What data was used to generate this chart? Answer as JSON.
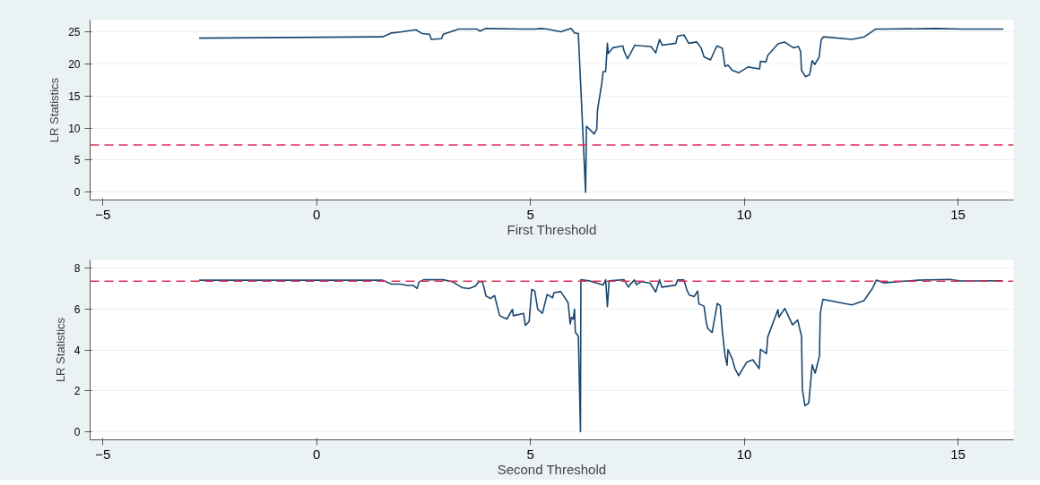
{
  "chart_data": [
    {
      "type": "line",
      "xlabel": "First Threshold",
      "ylabel": "LR Statistics",
      "xlim": [
        -5.3,
        16.3
      ],
      "ylim": [
        -1.2,
        26.8
      ],
      "xticks": [
        -5,
        0,
        5,
        10,
        15
      ],
      "yticks": [
        0,
        5,
        10,
        15,
        20,
        25
      ],
      "grid": "y",
      "series": [
        {
          "color": "#1a476f",
          "x": [
            -2.75,
            1.54,
            1.75,
            2.0,
            2.32,
            2.47,
            2.64,
            2.68,
            2.92,
            2.96,
            3.32,
            3.75,
            3.82,
            3.96,
            4.82,
            5.1,
            5.24,
            5.39,
            5.71,
            5.95,
            6.03,
            6.12,
            6.29,
            6.31,
            6.49,
            6.55,
            6.57,
            6.67,
            6.7,
            6.76,
            6.8,
            6.82,
            6.93,
            7.16,
            7.19,
            7.27,
            7.33,
            7.44,
            7.59,
            7.82,
            7.93,
            8.02,
            8.08,
            8.4,
            8.44,
            8.59,
            8.7,
            8.89,
            8.99,
            9.06,
            9.21,
            9.36,
            9.49,
            9.55,
            9.62,
            9.72,
            9.87,
            10.09,
            10.36,
            10.38,
            10.51,
            10.55,
            10.79,
            10.94,
            11.15,
            11.27,
            11.32,
            11.34,
            11.43,
            11.53,
            11.59,
            11.65,
            11.75,
            11.8,
            11.85,
            12.52,
            12.81,
            13.01,
            13.07,
            13.26,
            14.5,
            15.09,
            16.06
          ],
          "values": [
            24.0,
            24.2,
            24.8,
            25.0,
            25.3,
            24.7,
            24.6,
            23.8,
            23.9,
            24.6,
            25.4,
            25.4,
            25.1,
            25.5,
            25.4,
            25.4,
            25.5,
            25.4,
            25.0,
            25.5,
            24.8,
            24.7,
            0,
            10.3,
            9.1,
            9.8,
            12.9,
            17.0,
            18.8,
            18.8,
            23.2,
            21.6,
            22.5,
            22.8,
            22.0,
            20.8,
            21.5,
            22.9,
            22.8,
            22.7,
            21.7,
            23.8,
            22.9,
            23.2,
            24.3,
            24.5,
            23.2,
            23.4,
            22.5,
            21.1,
            20.6,
            22.8,
            22.4,
            19.6,
            19.8,
            19.0,
            18.6,
            19.5,
            19.2,
            20.4,
            20.3,
            21.3,
            23.1,
            23.4,
            22.5,
            22.7,
            21.9,
            19.0,
            18.0,
            18.3,
            20.5,
            19.9,
            21.0,
            23.7,
            24.2,
            23.8,
            24.2,
            25.1,
            25.4,
            25.4,
            25.5,
            25.4,
            25.4
          ]
        }
      ],
      "ref_lines": [
        {
          "axis": "y",
          "value": 7.36,
          "color": "#e0315a",
          "line_style": "dashed"
        }
      ]
    },
    {
      "type": "line",
      "xlabel": "Second Threshold",
      "ylabel": "LR Statistics",
      "xlim": [
        -5.3,
        16.3
      ],
      "ylim": [
        -0.4,
        8.4
      ],
      "xticks": [
        -5,
        0,
        5,
        10,
        15
      ],
      "yticks": [
        0,
        2,
        4,
        6,
        8
      ],
      "grid": "y",
      "series": [
        {
          "color": "#1a476f",
          "x": [
            -2.75,
            1.54,
            1.75,
            1.96,
            2.11,
            2.26,
            2.35,
            2.39,
            2.5,
            2.96,
            3.18,
            3.41,
            3.56,
            3.71,
            3.8,
            3.88,
            3.96,
            4.07,
            4.16,
            4.28,
            4.45,
            4.58,
            4.6,
            4.84,
            4.88,
            4.97,
            5.03,
            5.1,
            5.17,
            5.28,
            5.39,
            5.52,
            5.55,
            5.71,
            5.88,
            5.93,
            5.96,
            6.0,
            6.03,
            6.05,
            6.12,
            6.17,
            6.18,
            6.37,
            6.7,
            6.76,
            6.8,
            6.84,
            7.19,
            7.29,
            7.33,
            7.43,
            7.48,
            7.59,
            7.8,
            7.93,
            8.02,
            8.07,
            8.4,
            8.44,
            8.59,
            8.66,
            8.72,
            8.83,
            8.91,
            8.94,
            9.06,
            9.11,
            9.15,
            9.25,
            9.37,
            9.44,
            9.49,
            9.55,
            9.6,
            9.62,
            9.73,
            9.78,
            9.87,
            10.06,
            10.2,
            10.35,
            10.38,
            10.52,
            10.55,
            10.79,
            10.81,
            10.95,
            11.13,
            11.25,
            11.34,
            11.36,
            11.42,
            11.51,
            11.59,
            11.66,
            11.76,
            11.78,
            11.84,
            12.52,
            12.8,
            13.0,
            13.09,
            13.26,
            14.06,
            14.8,
            15.07,
            16.05
          ],
          "values": [
            7.41,
            7.41,
            7.22,
            7.22,
            7.15,
            7.15,
            7.01,
            7.31,
            7.43,
            7.43,
            7.33,
            7.04,
            7.0,
            7.12,
            7.35,
            7.32,
            6.64,
            6.51,
            6.66,
            5.67,
            5.51,
            5.98,
            5.67,
            5.78,
            5.2,
            5.39,
            6.96,
            6.88,
            5.99,
            5.79,
            6.71,
            6.55,
            6.8,
            6.85,
            6.31,
            5.27,
            5.6,
            5.5,
            5.99,
            4.86,
            4.67,
            0.0,
            7.43,
            7.38,
            7.17,
            7.43,
            6.12,
            7.38,
            7.43,
            7.07,
            7.19,
            7.42,
            7.19,
            7.34,
            7.26,
            6.83,
            7.43,
            7.07,
            7.17,
            7.42,
            7.42,
            6.92,
            6.68,
            6.61,
            6.88,
            6.25,
            6.14,
            5.38,
            5.04,
            4.85,
            6.27,
            6.16,
            4.9,
            3.74,
            3.25,
            4.02,
            3.5,
            3.1,
            2.74,
            3.4,
            3.52,
            3.08,
            4.03,
            3.82,
            4.63,
            5.97,
            5.6,
            6.03,
            5.22,
            5.46,
            4.68,
            2.07,
            1.27,
            1.4,
            3.27,
            2.86,
            3.7,
            5.79,
            6.47,
            6.2,
            6.41,
            7.01,
            7.41,
            7.28,
            7.41,
            7.45,
            7.37,
            7.38
          ]
        }
      ],
      "ref_lines": [
        {
          "axis": "y",
          "value": 7.36,
          "color": "#e0315a",
          "line_style": "dashed"
        }
      ]
    }
  ]
}
